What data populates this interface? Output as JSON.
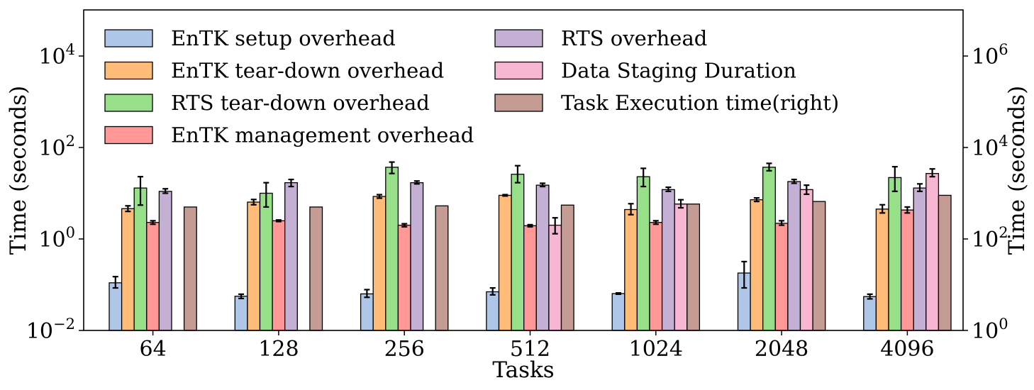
{
  "chart_data": {
    "type": "bar",
    "xlabel": "Tasks",
    "ylabel_left": "Time (seconds)",
    "ylabel_right": "Time (seconds)",
    "y_scale": "log",
    "ylim_left": [
      0.01,
      100000
    ],
    "ylim_right": [
      1,
      10000000
    ],
    "yticks_left": [
      {
        "base": "10",
        "exp": "−2"
      },
      {
        "base": "10",
        "exp": "0"
      },
      {
        "base": "10",
        "exp": "2"
      },
      {
        "base": "10",
        "exp": "4"
      }
    ],
    "yticks_right": [
      {
        "base": "10",
        "exp": "0"
      },
      {
        "base": "10",
        "exp": "2"
      },
      {
        "base": "10",
        "exp": "4"
      },
      {
        "base": "10",
        "exp": "6"
      }
    ],
    "grid": false,
    "legend_position": "top-left",
    "categories": [
      "64",
      "128",
      "256",
      "512",
      "1024",
      "2048",
      "4096"
    ],
    "series": [
      {
        "name": "EnTK setup overhead",
        "color": "#aec7e8",
        "axis": "left",
        "values": [
          0.11,
          0.056,
          0.063,
          0.07,
          0.064,
          0.18,
          0.055
        ],
        "err_low": [
          0.085,
          0.05,
          0.053,
          0.06,
          0.062,
          0.085,
          0.049
        ],
        "err_high": [
          0.15,
          0.062,
          0.078,
          0.085,
          0.066,
          0.32,
          0.062
        ]
      },
      {
        "name": "EnTK tear-down overhead",
        "color": "#ffbb78",
        "axis": "left",
        "values": [
          4.6,
          6.4,
          8.5,
          9.0,
          4.4,
          7.2,
          4.5
        ],
        "err_low": [
          4.0,
          5.6,
          7.8,
          8.7,
          3.4,
          6.6,
          3.7
        ],
        "err_high": [
          5.3,
          7.3,
          9.3,
          9.3,
          5.9,
          7.9,
          5.6
        ]
      },
      {
        "name": "RTS tear-down overhead",
        "color": "#98df8a",
        "axis": "left",
        "values": [
          13.0,
          10.0,
          37.0,
          26.0,
          23.0,
          37.0,
          22.0
        ],
        "err_low": [
          5.5,
          5.0,
          27.0,
          17.0,
          14.0,
          31.0,
          11.0
        ],
        "err_high": [
          23.0,
          17.0,
          48.0,
          40.0,
          35.0,
          45.0,
          38.0
        ]
      },
      {
        "name": "EnTK management overhead",
        "color": "#ff9896",
        "axis": "left",
        "values": [
          2.3,
          2.5,
          2.0,
          1.95,
          2.3,
          2.2,
          4.3
        ],
        "err_low": [
          2.1,
          2.4,
          1.85,
          1.85,
          2.1,
          2.0,
          3.7
        ],
        "err_high": [
          2.5,
          2.6,
          2.15,
          2.05,
          2.5,
          2.5,
          5.0
        ]
      },
      {
        "name": "RTS overhead",
        "color": "#c5b0d5",
        "axis": "left",
        "values": [
          11.0,
          17.0,
          17.0,
          15.0,
          12.0,
          18.0,
          13.0
        ],
        "err_low": [
          10.0,
          14.0,
          16.0,
          14.0,
          11.0,
          16.5,
          11.0
        ],
        "err_high": [
          12.5,
          20.0,
          18.5,
          16.5,
          13.5,
          20.0,
          16.0
        ]
      },
      {
        "name": "Data Staging Duration",
        "color": "#f7b6d2",
        "axis": "left",
        "values": [
          null,
          null,
          null,
          2.0,
          5.8,
          12.0,
          27.0
        ],
        "err_low": [
          null,
          null,
          null,
          1.3,
          4.8,
          9.5,
          23.0
        ],
        "err_high": [
          null,
          null,
          null,
          2.9,
          7.2,
          15.0,
          34.0
        ]
      },
      {
        "name": "Task Execution time(right)",
        "color": "#c49c94",
        "axis": "right",
        "values": [
          500,
          500,
          530,
          550,
          580,
          660,
          900
        ],
        "err_low": [
          null,
          null,
          null,
          null,
          null,
          null,
          null
        ],
        "err_high": [
          null,
          null,
          null,
          null,
          null,
          null,
          null
        ]
      }
    ]
  }
}
